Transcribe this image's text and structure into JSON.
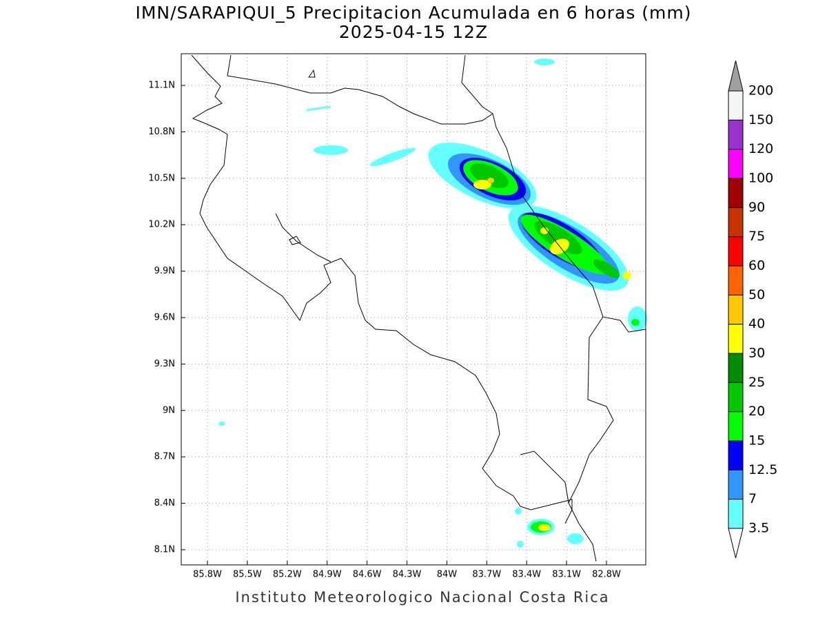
{
  "title": "IMN/SARAPIQUI_5 Precipitacion Acumulada en 6 horas (mm)",
  "subtitle": "2025-04-15 12Z",
  "footer": "Instituto Meteorologico Nacional Costa Rica",
  "lon_ticks": [
    "85.8W",
    "85.5W",
    "85.2W",
    "84.9W",
    "84.6W",
    "84.3W",
    "84W",
    "83.7W",
    "83.4W",
    "83.1W",
    "82.8W"
  ],
  "lat_ticks": [
    "11.1N",
    "10.8N",
    "10.5N",
    "10.2N",
    "9.9N",
    "9.6N",
    "9.3N",
    "9N",
    "8.7N",
    "8.4N",
    "8.1N"
  ],
  "colorbar": {
    "levels": [
      "200",
      "150",
      "120",
      "100",
      "90",
      "75",
      "60",
      "50",
      "40",
      "30",
      "25",
      "20",
      "15",
      "12.5",
      "7",
      "3.5"
    ],
    "colors": [
      "#a0a0a0",
      "#f5f5f5",
      "#9932cc",
      "#ff00ff",
      "#a00000",
      "#c83200",
      "#ff0000",
      "#ff6400",
      "#ffc800",
      "#ffff00",
      "#008c00",
      "#00c800",
      "#00ff00",
      "#0000ff",
      "#3296ff",
      "#64ffff",
      "#ffffff"
    ]
  }
}
